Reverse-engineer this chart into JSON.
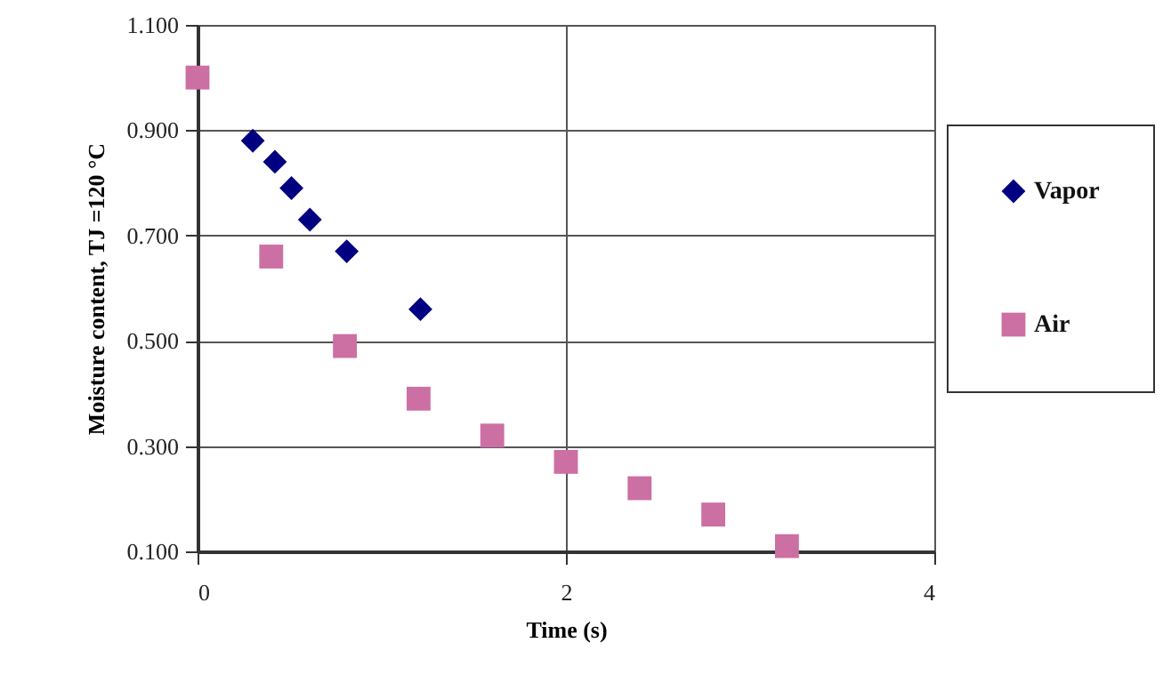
{
  "chart_data": {
    "type": "scatter",
    "xlabel": "Time (s)",
    "ylabel": "Moisture content, TJ =120 °C",
    "xlim": [
      0,
      4
    ],
    "xticks": [
      0,
      2,
      4
    ],
    "ylim": [
      0.1,
      1.1
    ],
    "yticks": [
      {
        "value": 0.1,
        "label": "0.100"
      },
      {
        "value": 0.3,
        "label": "0.300"
      },
      {
        "value": 0.5,
        "label": "0.500"
      },
      {
        "value": 0.7,
        "label": "0.700"
      },
      {
        "value": 0.9,
        "label": "0.900"
      },
      {
        "value": 1.1,
        "label": "1.100"
      }
    ],
    "grid": true,
    "legend": "right",
    "series": [
      {
        "name": "Vapor",
        "color": "#000080",
        "marker": "diamond",
        "x": [
          0.3,
          0.42,
          0.51,
          0.61,
          0.81,
          1.21
        ],
        "values": [
          0.88,
          0.84,
          0.79,
          0.73,
          0.67,
          0.56
        ]
      },
      {
        "name": "Air",
        "color": "#cc6fa3",
        "marker": "square",
        "x": [
          0,
          0.4,
          0.8,
          1.2,
          1.6,
          2.0,
          2.4,
          2.8,
          3.2
        ],
        "values": [
          1.0,
          0.66,
          0.49,
          0.39,
          0.32,
          0.27,
          0.22,
          0.17,
          0.11
        ]
      }
    ]
  }
}
